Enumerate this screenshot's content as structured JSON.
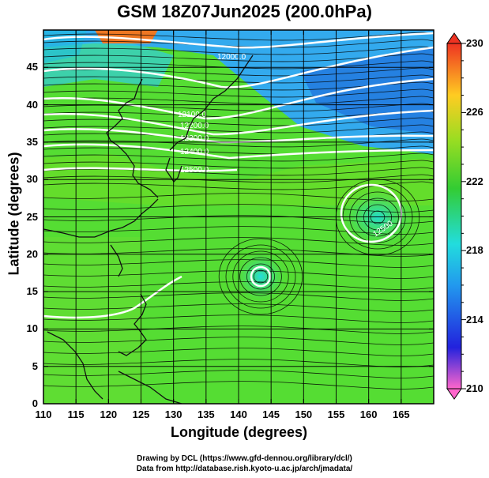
{
  "title": "GSM 18Z07Jun2025 (200.0hPa)",
  "xlabel": "Longitude (degrees)",
  "ylabel": "Latitude  (degrees)",
  "credits": {
    "line1": "Drawing by DCL (https://www.gfd-dennou.org/library/dcl/)",
    "line2": "Data from http://database.rish.kyoto-u.ac.jp/arch/jmadata/"
  },
  "chart_data": {
    "type": "map",
    "x_ticks": [
      "110",
      "115",
      "120",
      "125",
      "130",
      "135",
      "140",
      "145",
      "150",
      "155",
      "160",
      "165"
    ],
    "y_ticks": [
      "0",
      "5",
      "10",
      "15",
      "20",
      "25",
      "30",
      "35",
      "40",
      "45"
    ],
    "xlim": [
      110,
      170
    ],
    "ylim": [
      0,
      50
    ],
    "colorbar": {
      "ticks": [
        "230",
        "226",
        "222",
        "218",
        "214",
        "210"
      ],
      "range": [
        210,
        230
      ]
    },
    "contour_labels": [
      "12000.0",
      "12100.0",
      "12200.0",
      "12300.0",
      "12400.0",
      "12500.0",
      "12500"
    ],
    "fields": "temperature shading (K), geopotential height contours (white), wind streamlines (black)"
  }
}
